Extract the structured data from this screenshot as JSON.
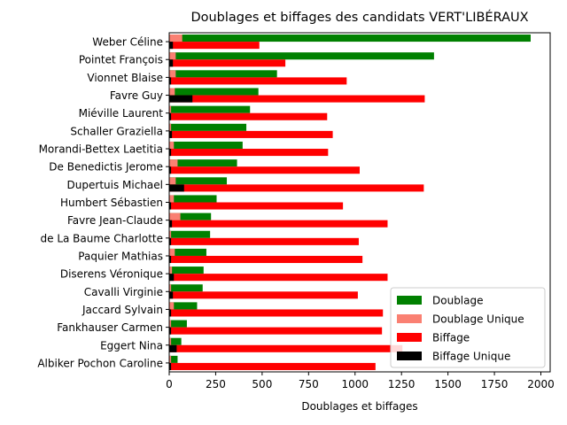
{
  "chart_data": {
    "type": "bar",
    "orientation": "horizontal",
    "title": "Doublages et biffages des candidats VERT'LIBÉRAUX",
    "xlabel": "Doublages et biffages",
    "ylabel": "",
    "xlim": [
      0,
      2050
    ],
    "xticks": [
      0,
      250,
      500,
      750,
      1000,
      1250,
      1500,
      1750,
      2000
    ],
    "legend_position": "lower-right",
    "categories": [
      "Weber Céline",
      "Pointet François",
      "Vionnet Blaise",
      "Favre Guy",
      "Miéville Laurent",
      "Schaller Graziella",
      "Morandi-Bettex Laetitia",
      "De Benedictis Jerome",
      "Dupertuis Michael",
      "Humbert Sébastien",
      "Favre Jean-Claude",
      "de La Baume Charlotte",
      "Paquier Mathias",
      "Diserens Véronique",
      "Cavalli Virginie",
      "Jaccard Sylvain",
      "Fankhauser Carmen",
      "Eggert Nina",
      "Albiker Pochon Caroline"
    ],
    "series": [
      {
        "name": "Doublage",
        "color": "#008000",
        "values": [
          1945,
          1425,
          580,
          480,
          435,
          415,
          395,
          365,
          310,
          255,
          225,
          220,
          200,
          185,
          180,
          150,
          95,
          65,
          45
        ]
      },
      {
        "name": "Doublage Unique",
        "color": "#fa8072",
        "values": [
          70,
          35,
          35,
          30,
          10,
          10,
          25,
          45,
          35,
          25,
          60,
          10,
          30,
          15,
          10,
          25,
          10,
          10,
          10
        ]
      },
      {
        "name": "Biffage",
        "color": "#ff0000",
        "values": [
          485,
          625,
          955,
          1375,
          850,
          880,
          855,
          1025,
          1370,
          935,
          1175,
          1020,
          1040,
          1175,
          1015,
          1150,
          1145,
          1255,
          1110
        ]
      },
      {
        "name": "Biffage Unique",
        "color": "#000000",
        "values": [
          20,
          20,
          10,
          125,
          10,
          15,
          10,
          10,
          80,
          10,
          15,
          10,
          10,
          25,
          20,
          10,
          10,
          40,
          10
        ]
      }
    ]
  }
}
